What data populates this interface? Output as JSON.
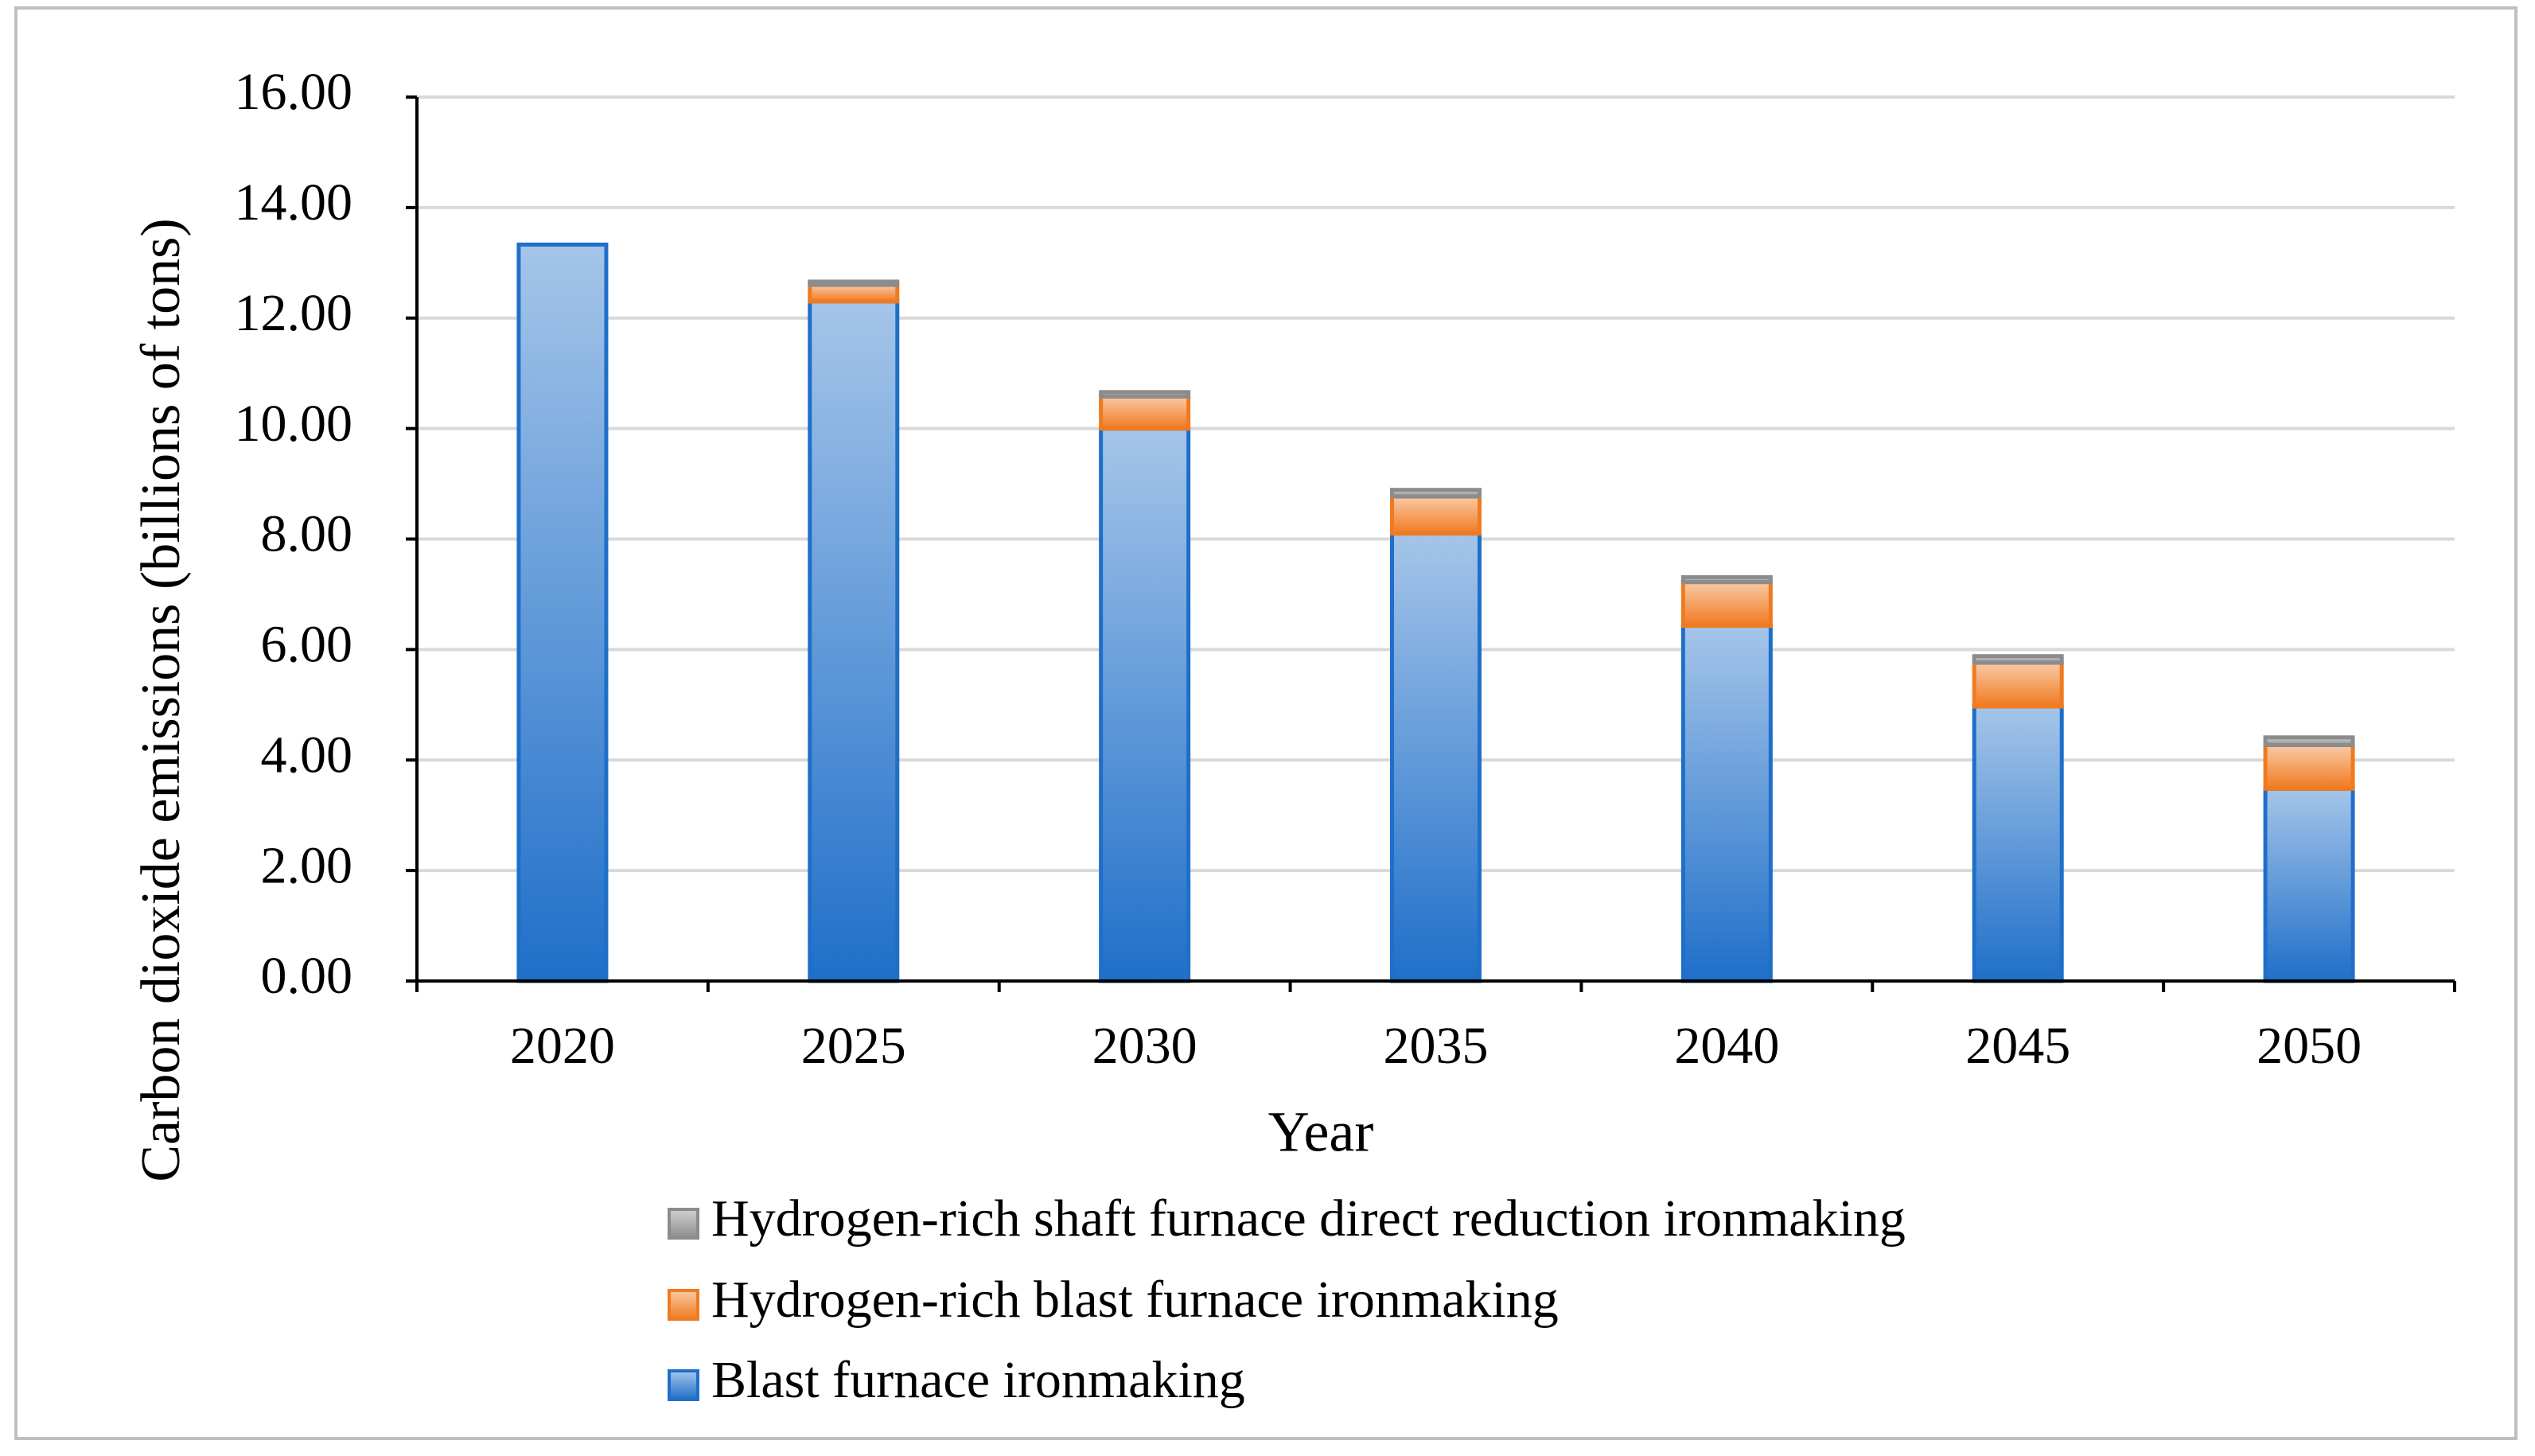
{
  "chart_data": {
    "type": "stacked-bar",
    "x_label": "Year",
    "y_label": "Carbon dioxide emissions (billions of tons)",
    "categories": [
      "2020",
      "2025",
      "2030",
      "2035",
      "2040",
      "2045",
      "2050"
    ],
    "series": [
      {
        "name": "Blast furnace ironmaking",
        "color": "#1f6fc9",
        "values": [
          13.33,
          12.3,
          10.0,
          8.1,
          6.43,
          4.97,
          3.48
        ]
      },
      {
        "name": "Hydrogen-rich blast furnace ironmaking",
        "color": "#f07a20",
        "values": [
          0,
          0.3,
          0.58,
          0.67,
          0.79,
          0.79,
          0.79
        ]
      },
      {
        "name": "Hydrogen-rich shaft furnace direct reduction ironmaking",
        "color": "#8c8c8c",
        "values": [
          0,
          0.06,
          0.08,
          0.12,
          0.09,
          0.12,
          0.14
        ]
      }
    ],
    "ylim": [
      0,
      16
    ],
    "yticks": [
      {
        "value": 0,
        "label": "0.00"
      },
      {
        "value": 2,
        "label": "2.00"
      },
      {
        "value": 4,
        "label": "4.00"
      },
      {
        "value": 6,
        "label": "6.00"
      },
      {
        "value": 8,
        "label": "8.00"
      },
      {
        "value": 10,
        "label": "10.00"
      },
      {
        "value": 12,
        "label": "12.00"
      },
      {
        "value": 14,
        "label": "14.00"
      },
      {
        "value": 16,
        "label": "16.00"
      }
    ],
    "grid": true
  }
}
